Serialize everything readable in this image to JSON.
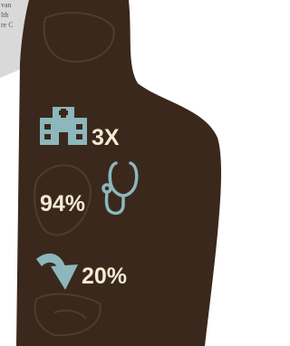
{
  "snippet_lines": [
    "van",
    "lth",
    "re C"
  ],
  "stats": [
    "3X",
    "94%",
    "20%"
  ]
}
